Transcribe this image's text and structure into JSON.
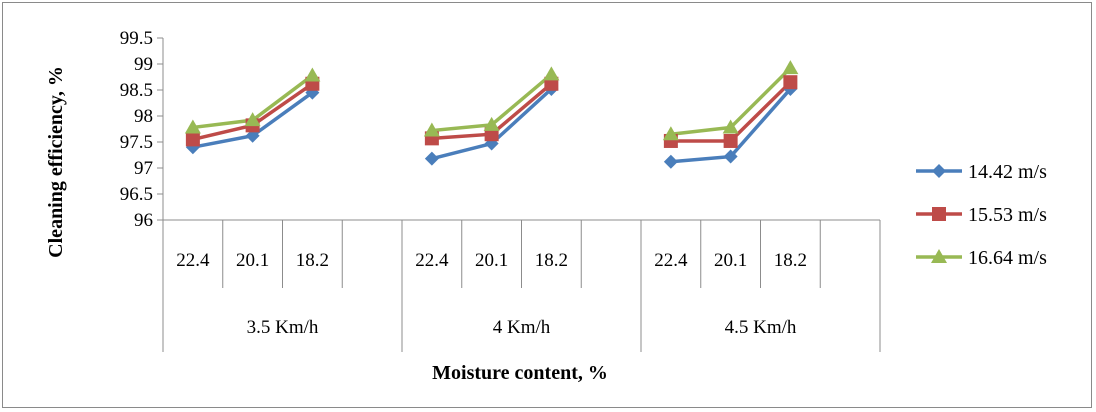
{
  "chart_data": {
    "type": "line",
    "title": "",
    "ylabel": "Cleaning efficiency, %",
    "xlabel": "Moisture content, %",
    "ylim": [
      96,
      99.5
    ],
    "yticks": [
      "96",
      "96.5",
      "97",
      "97.5",
      "98",
      "98.5",
      "99",
      "99.5"
    ],
    "groups": [
      {
        "label": "3.5 Km/h",
        "categories": [
          "22.4",
          "20.1",
          "18.2"
        ]
      },
      {
        "label": "4 Km/h",
        "categories": [
          "22.4",
          "20.1",
          "18.2"
        ]
      },
      {
        "label": "4.5 Km/h",
        "categories": [
          "22.4",
          "20.1",
          "18.2"
        ]
      }
    ],
    "legend_position": "right",
    "grid": false,
    "series": [
      {
        "name": "14.42 m/s",
        "color": "#4a7ebb",
        "marker": "diamond",
        "values": [
          [
            97.4,
            97.62,
            98.45
          ],
          [
            97.18,
            97.47,
            98.52
          ],
          [
            97.12,
            97.22,
            98.52
          ]
        ]
      },
      {
        "name": "15.53 m/s",
        "color": "#be4b48",
        "marker": "square",
        "values": [
          [
            97.55,
            97.82,
            98.62
          ],
          [
            97.57,
            97.65,
            98.62
          ],
          [
            97.52,
            97.52,
            98.65
          ]
        ]
      },
      {
        "name": "16.64 m/s",
        "color": "#98b954",
        "marker": "triangle",
        "values": [
          [
            97.78,
            97.92,
            98.78
          ],
          [
            97.72,
            97.83,
            98.8
          ],
          [
            97.65,
            97.78,
            98.92
          ]
        ]
      }
    ]
  }
}
